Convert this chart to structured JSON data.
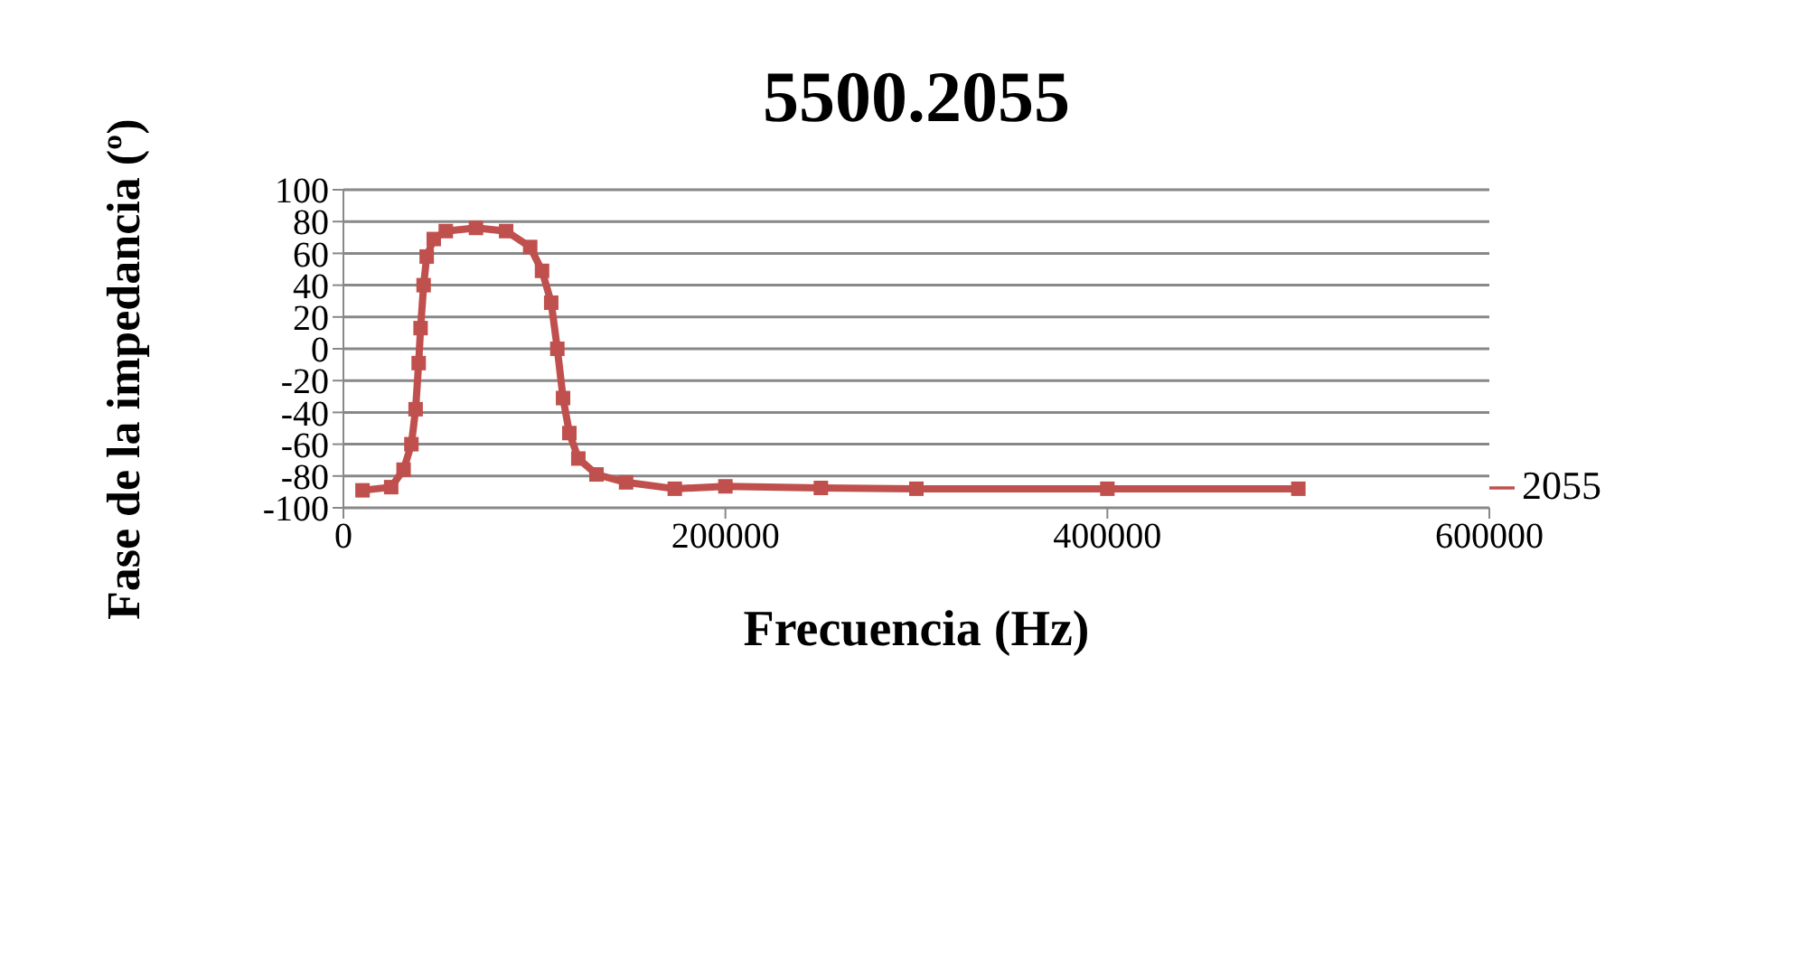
{
  "chart_data": {
    "type": "line",
    "title": "5500.2055",
    "xlabel": "Frecuencia (Hz)",
    "ylabel": "Fase de la impedancia (º)",
    "x": [
      10000,
      25000,
      31500,
      35600,
      37800,
      39400,
      40400,
      42000,
      43600,
      47300,
      53600,
      69400,
      85200,
      97800,
      104000,
      108800,
      112000,
      115000,
      118300,
      123000,
      132500,
      148000,
      173500,
      200000,
      250000,
      300000,
      400000,
      500000
    ],
    "series": [
      {
        "name": "2055",
        "color": "#c0504d",
        "values": [
          -89,
          -87,
          -76,
          -60,
          -38,
          -9,
          13,
          40,
          58,
          69,
          74,
          76,
          74,
          64,
          49,
          29,
          0,
          -31,
          -53,
          -69,
          -79,
          -84,
          -88,
          -86.5,
          -87.5,
          -88,
          -88,
          -88
        ]
      }
    ],
    "xlim": [
      0,
      600000
    ],
    "xticks": [
      0,
      200000,
      400000,
      600000
    ],
    "ylim": [
      -100,
      100
    ],
    "yticks": [
      -100,
      -80,
      -60,
      -40,
      -20,
      0,
      20,
      40,
      60,
      80,
      100
    ],
    "grid": "y",
    "legend": "right",
    "marker": "square"
  }
}
